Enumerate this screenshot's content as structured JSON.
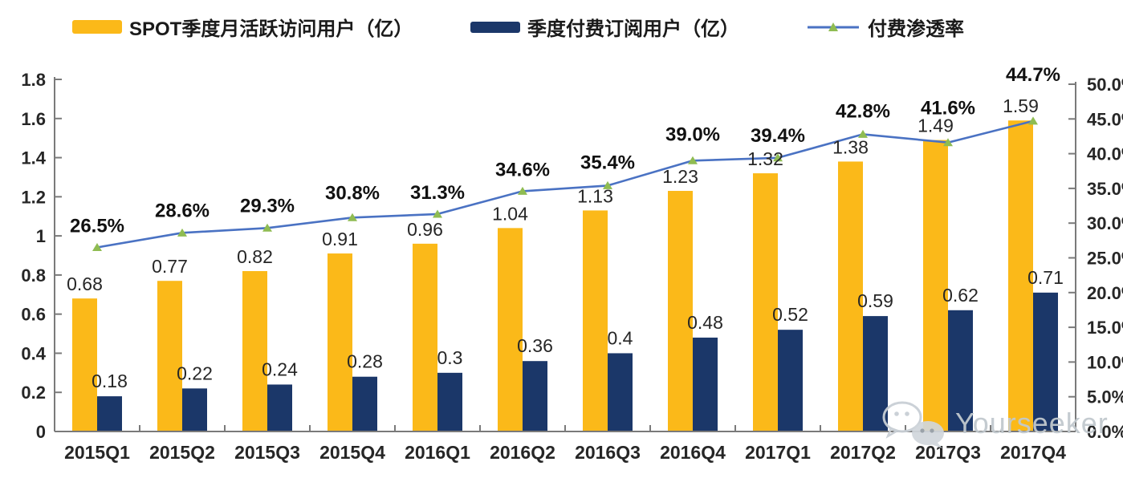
{
  "legend": {
    "mau_label": "SPOT季度月活跃访问用户（亿）",
    "subs_label": "季度付费订阅用户（亿）",
    "penetration_label": "付费渗透率"
  },
  "colors": {
    "mau_bar": "#FBB919",
    "subs_bar": "#1B3769",
    "line": "#4A72C3",
    "marker": "#8FBC52",
    "axis": "#7A7A7A",
    "text": "#262626",
    "pct_text": "#111111",
    "watermark": "#C1C8CE"
  },
  "watermark": {
    "text": "Yourseeker",
    "icon": "wechat-icon"
  },
  "chart_data": {
    "type": "combo-bar-line",
    "categories": [
      "2015Q1",
      "2015Q2",
      "2015Q3",
      "2015Q4",
      "2016Q1",
      "2016Q2",
      "2016Q3",
      "2016Q4",
      "2017Q1",
      "2017Q2",
      "2017Q3",
      "2017Q4"
    ],
    "series": [
      {
        "name": "SPOT季度月活跃访问用户（亿）",
        "type": "bar",
        "axis": "left",
        "color": "#FBB919",
        "values": [
          0.68,
          0.77,
          0.82,
          0.91,
          0.96,
          1.04,
          1.13,
          1.23,
          1.32,
          1.38,
          1.49,
          1.59
        ],
        "labels": [
          "0.68",
          "0.77",
          "0.82",
          "0.91",
          "0.96",
          "1.04",
          "1.13",
          "1.23",
          "1.32",
          "1.38",
          "1.49",
          "1.59"
        ]
      },
      {
        "name": "季度付费订阅用户（亿）",
        "type": "bar",
        "axis": "left",
        "color": "#1B3769",
        "values": [
          0.18,
          0.22,
          0.24,
          0.28,
          0.3,
          0.36,
          0.4,
          0.48,
          0.52,
          0.59,
          0.62,
          0.71
        ],
        "labels": [
          "0.18",
          "0.22",
          "0.24",
          "0.28",
          "0.3",
          "0.36",
          "0.4",
          "0.48",
          "0.52",
          "0.59",
          "0.62",
          "0.71"
        ]
      },
      {
        "name": "付费渗透率",
        "type": "line",
        "axis": "right",
        "color": "#4A72C3",
        "marker": "triangle",
        "marker_color": "#8FBC52",
        "values": [
          26.5,
          28.6,
          29.3,
          30.8,
          31.3,
          34.6,
          35.4,
          39.0,
          39.4,
          42.8,
          41.6,
          44.7
        ],
        "labels": [
          "26.5%",
          "28.6%",
          "29.3%",
          "30.8%",
          "31.3%",
          "34.6%",
          "35.4%",
          "39.0%",
          "39.4%",
          "42.8%",
          "41.6%",
          "44.7%"
        ]
      }
    ],
    "left_axis": {
      "min": 0,
      "max": 1.8,
      "step": 0.2,
      "ticks": [
        "0",
        "0.2",
        "0.4",
        "0.6",
        "0.8",
        "1",
        "1.2",
        "1.4",
        "1.6",
        "1.8"
      ]
    },
    "right_axis": {
      "min": 0,
      "max": 50,
      "step": 5,
      "ticks": [
        "0.0%",
        "5.0%",
        "10.0%",
        "15.0%",
        "20.0%",
        "25.0%",
        "30.0%",
        "35.0%",
        "40.0%",
        "45.0%",
        "50.0%"
      ]
    },
    "grid": false,
    "legend_position": "top",
    "pct_label_dy": [
      -27,
      -28,
      -28,
      -31,
      -27,
      -27,
      -29,
      -33,
      -28,
      -29,
      -43,
      -58
    ]
  }
}
